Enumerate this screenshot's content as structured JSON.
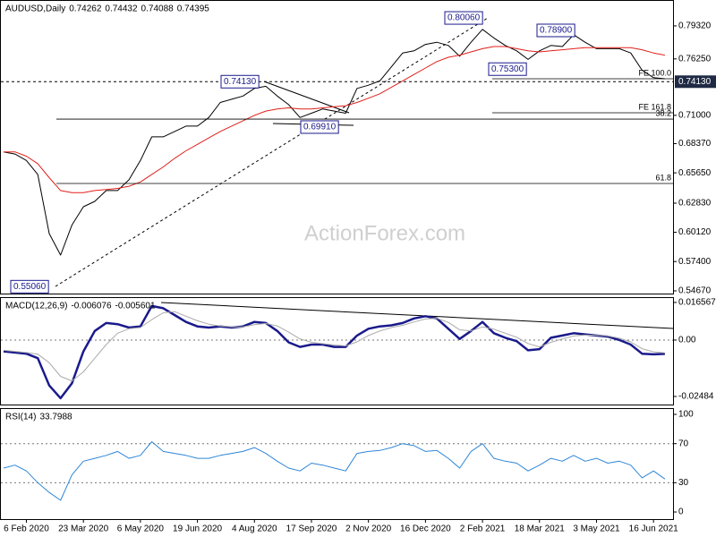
{
  "chart_data": [
    {
      "type": "line",
      "title": "AUDUSD,Daily",
      "ohlc": [
        0.74262,
        0.74432,
        0.74088,
        0.74395
      ],
      "watermark": "ActionForex.com",
      "ylim": [
        0.5442,
        0.8173
      ],
      "yticks": [
        {
          "value": 0.7932,
          "label": "0.79320"
        },
        {
          "value": 0.7625,
          "label": "0.76250"
        },
        {
          "value": 0.71,
          "label": "0.71000"
        },
        {
          "value": 0.6837,
          "label": "0.68370"
        },
        {
          "value": 0.6565,
          "label": "0.65650"
        },
        {
          "value": 0.6283,
          "label": "0.62830"
        },
        {
          "value": 0.6012,
          "label": "0.60120"
        },
        {
          "value": 0.574,
          "label": "0.57400"
        },
        {
          "value": 0.5467,
          "label": "0.54670"
        }
      ],
      "price_marker": {
        "value": 0.7413,
        "label": "0.74130"
      },
      "levels": [
        {
          "label": "FE 100.0",
          "value": 0.744
        },
        {
          "label": "FE 161.8",
          "value": 0.7124
        },
        {
          "label": "38.2",
          "value": 0.7065
        },
        {
          "label": "61.8",
          "value": 0.6466
        }
      ],
      "annotations": [
        {
          "value": 0.8006,
          "label": "0.80060"
        },
        {
          "value": 0.789,
          "label": "0.78900"
        },
        {
          "value": 0.753,
          "label": "0.75300"
        },
        {
          "value": 0.7413,
          "label": "0.74130"
        },
        {
          "value": 0.6991,
          "label": "0.69910"
        },
        {
          "value": 0.5506,
          "label": "0.55060"
        }
      ],
      "series": [
        {
          "color": "#000000",
          "values": [
            0.676,
            0.674,
            0.668,
            0.655,
            0.6,
            0.58,
            0.608,
            0.625,
            0.63,
            0.64,
            0.64,
            0.65,
            0.668,
            0.69,
            0.69,
            0.695,
            0.7,
            0.7,
            0.708,
            0.722,
            0.725,
            0.728,
            0.735,
            0.737,
            0.728,
            0.72,
            0.708,
            0.712,
            0.716,
            0.714,
            0.712,
            0.735,
            0.738,
            0.742,
            0.755,
            0.768,
            0.77,
            0.776,
            0.778,
            0.775,
            0.765,
            0.778,
            0.79,
            0.782,
            0.775,
            0.77,
            0.762,
            0.77,
            0.775,
            0.774,
            0.785,
            0.778,
            0.772,
            0.772,
            0.772,
            0.768,
            0.752,
            0.745,
            0.744
          ]
        },
        {
          "color": "#e0201b",
          "values": [
            0.676,
            0.676,
            0.672,
            0.665,
            0.652,
            0.64,
            0.638,
            0.638,
            0.64,
            0.641,
            0.642,
            0.644,
            0.648,
            0.655,
            0.662,
            0.67,
            0.677,
            0.683,
            0.689,
            0.695,
            0.7,
            0.705,
            0.71,
            0.714,
            0.716,
            0.717,
            0.716,
            0.716,
            0.717,
            0.718,
            0.719,
            0.722,
            0.726,
            0.73,
            0.736,
            0.742,
            0.748,
            0.754,
            0.76,
            0.764,
            0.766,
            0.769,
            0.772,
            0.774,
            0.774,
            0.772,
            0.77,
            0.769,
            0.77,
            0.771,
            0.772,
            0.773,
            0.773,
            0.773,
            0.773,
            0.773,
            0.771,
            0.768,
            0.766
          ]
        }
      ]
    },
    {
      "type": "line",
      "title": "MACD(12,26,9)",
      "readout": [
        -0.006076,
        -0.005601
      ],
      "ylim": [
        -0.0284,
        0.0189
      ],
      "yticks": [
        0.016567,
        {
          "value": 0,
          "label": "0.00"
        },
        -0.02484
      ],
      "dotted_levels": [
        0
      ],
      "series": [
        {
          "color": "#1a1a8c",
          "width": 2.5,
          "values": [
            -0.005,
            -0.0055,
            -0.006,
            -0.008,
            -0.02,
            -0.0256,
            -0.019,
            -0.005,
            0.004,
            0.0075,
            0.007,
            0.0055,
            0.006,
            0.015,
            0.014,
            0.011,
            0.008,
            0.006,
            0.0055,
            0.006,
            0.0055,
            0.006,
            0.008,
            0.0075,
            0.004,
            -0.001,
            -0.003,
            -0.002,
            -0.002,
            -0.003,
            -0.003,
            0.002,
            0.005,
            0.006,
            0.0065,
            0.0075,
            0.0095,
            0.0105,
            0.0095,
            0.005,
            0.0005,
            0.004,
            0.008,
            0.003,
            0.001,
            -0.0005,
            -0.0045,
            -0.004,
            0.001,
            0.002,
            0.003,
            0.0025,
            0.002,
            0.0015,
            0.0,
            -0.002,
            -0.006,
            -0.0063,
            -0.0061
          ]
        },
        {
          "color": "#aaaaaa",
          "width": 1,
          "values": [
            -0.0045,
            -0.005,
            -0.0055,
            -0.0062,
            -0.01,
            -0.016,
            -0.018,
            -0.014,
            -0.008,
            -0.002,
            0.003,
            0.005,
            0.0055,
            0.009,
            0.012,
            0.0125,
            0.0105,
            0.0085,
            0.007,
            0.0062,
            0.0058,
            0.0058,
            0.0068,
            0.0073,
            0.0062,
            0.0035,
            0.0005,
            -0.001,
            -0.0016,
            -0.0022,
            -0.0026,
            -0.0008,
            0.002,
            0.004,
            0.0055,
            0.0065,
            0.008,
            0.0093,
            0.0096,
            0.0078,
            0.0045,
            0.004,
            0.0058,
            0.0048,
            0.003,
            0.0012,
            -0.0015,
            -0.003,
            -0.001,
            0.0005,
            0.0018,
            0.0022,
            0.0021,
            0.0018,
            0.0008,
            -0.0008,
            -0.0038,
            -0.0052,
            -0.0056
          ]
        }
      ]
    },
    {
      "type": "line",
      "title": "RSI(14)",
      "readout": [
        33.7988
      ],
      "ylim": [
        -7.3,
        106.4
      ],
      "yticks": [
        100,
        70,
        30,
        0
      ],
      "dotted_levels": [
        70,
        30
      ],
      "categories": [
        null,
        null,
        "6 Feb 2020",
        null,
        null,
        null,
        null,
        "23 Mar 2020",
        null,
        null,
        null,
        null,
        "6 May 2020",
        null,
        null,
        null,
        null,
        "19 Jun 2020",
        null,
        null,
        null,
        null,
        "4 Aug 2020",
        null,
        null,
        null,
        null,
        "17 Sep 2020",
        null,
        null,
        null,
        null,
        "2 Nov 2020",
        null,
        null,
        null,
        null,
        "16 Dec 2020",
        null,
        null,
        null,
        null,
        "2 Feb 2021",
        null,
        null,
        null,
        null,
        "18 Mar 2021",
        null,
        null,
        null,
        null,
        "3 May 2021",
        null,
        null,
        null,
        null,
        "16 Jun 2021",
        null
      ],
      "series": [
        {
          "color": "#2f86d6",
          "width": 1,
          "values": [
            45,
            48,
            42,
            30,
            20,
            12,
            38,
            52,
            55,
            58,
            62,
            55,
            58,
            72,
            62,
            60,
            58,
            55,
            55,
            58,
            60,
            62,
            66,
            60,
            52,
            45,
            42,
            50,
            48,
            45,
            42,
            60,
            62,
            63,
            66,
            70,
            68,
            62,
            63,
            55,
            45,
            62,
            70,
            55,
            52,
            50,
            42,
            48,
            55,
            52,
            58,
            52,
            55,
            50,
            52,
            48,
            35,
            42,
            33.7988
          ]
        }
      ]
    }
  ]
}
